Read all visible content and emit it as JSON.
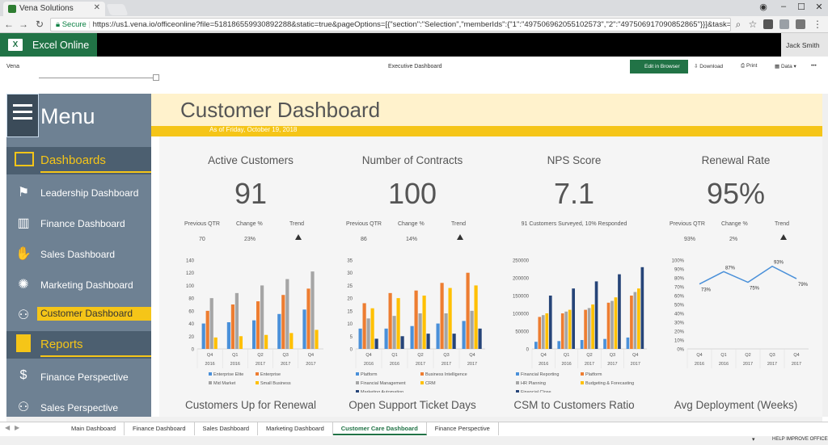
{
  "browser": {
    "tab_title": "Vena Solutions",
    "secure_label": "Secure",
    "url": "https://us1.vena.io/officeonline?file=518186559930892288&static=true&pageOptions=[{\"section\":\"Selection\",\"memberIds\":{\"1\":\"497506962055102573\",\"2\":\"497506917090852865\"}}]&task=51275349..."
  },
  "excel": {
    "brand": "Excel Online",
    "user": "Jack Smith",
    "vena_label": "Vena",
    "workbook_title": "Executive Dashboard",
    "edit_btn": "Edit in Browser",
    "download": "Download",
    "print": "Print",
    "data": "Data",
    "more": "•••"
  },
  "sidebar": {
    "menu": "Menu",
    "dashboards_head": "Dashboards",
    "items": [
      {
        "label": "Leadership Dashboard"
      },
      {
        "label": "Finance Dashboard"
      },
      {
        "label": "Sales Dashboard"
      },
      {
        "label": "Marketing Dashboard"
      },
      {
        "label": "Customer Dashboard"
      }
    ],
    "reports_head": "Reports",
    "reports": [
      {
        "label": "Finance Perspective"
      },
      {
        "label": "Sales Perspective"
      }
    ]
  },
  "dashboard": {
    "title": "Customer Dashboard",
    "as_of": "As of Friday, October 19, 2018",
    "kpis": [
      {
        "title": "Active Customers",
        "value": "91",
        "prev_lbl": "Previous QTR",
        "change_lbl": "Change %",
        "trend_lbl": "Trend",
        "prev": "70",
        "change": "23%"
      },
      {
        "title": "Number of Contracts",
        "value": "100",
        "prev_lbl": "Previous QTR",
        "change_lbl": "Change %",
        "trend_lbl": "Trend",
        "prev": "86",
        "change": "14%"
      },
      {
        "title": "NPS Score",
        "value": "7.1",
        "survey": "91 Customers Surveyed, 10% Responded"
      },
      {
        "title": "Renewal Rate",
        "value": "95%",
        "prev_lbl": "Previous QTR",
        "change_lbl": "Change %",
        "trend_lbl": "Trend",
        "prev": "93%",
        "change": "2%"
      }
    ],
    "bottom_titles": [
      "Customers Up for Renewal",
      "Open Support Ticket Days",
      "CSM to Customers Ratio",
      "Avg Deployment (Weeks)"
    ]
  },
  "chart_data": [
    {
      "type": "bar",
      "categories": [
        "Q4 2016",
        "Q1 2016",
        "Q2 2017",
        "Q3 2017",
        "Q4 2017"
      ],
      "quarter_labels": [
        "Q4",
        "Q1",
        "Q2",
        "Q3",
        "Q4"
      ],
      "year_labels": [
        "2016",
        "2016",
        "2017",
        "2017",
        "2017"
      ],
      "ylim": [
        0,
        140
      ],
      "yticks": [
        0,
        20,
        40,
        60,
        80,
        100,
        120,
        140
      ],
      "series": [
        {
          "name": "Enterprise Elite",
          "color": "#4a90d9",
          "values": [
            40,
            42,
            45,
            55,
            62
          ]
        },
        {
          "name": "Enterprise",
          "color": "#ed7d31",
          "values": [
            60,
            70,
            75,
            85,
            95
          ]
        },
        {
          "name": "Mid Market",
          "color": "#a5a5a5",
          "values": [
            80,
            88,
            100,
            110,
            122
          ]
        },
        {
          "name": "Small Business",
          "color": "#ffc000",
          "values": [
            18,
            20,
            22,
            25,
            30
          ]
        }
      ]
    },
    {
      "type": "bar",
      "categories": [
        "Q4 2016",
        "Q1 2016",
        "Q2 2017",
        "Q3 2017",
        "Q4 2017"
      ],
      "quarter_labels": [
        "Q4",
        "Q1",
        "Q2",
        "Q3",
        "Q4"
      ],
      "year_labels": [
        "2016",
        "2016",
        "2017",
        "2017",
        "2017"
      ],
      "ylim": [
        0,
        35
      ],
      "yticks": [
        0,
        5,
        10,
        15,
        20,
        25,
        30,
        35
      ],
      "series": [
        {
          "name": "Platform",
          "color": "#4a90d9",
          "values": [
            8,
            8,
            9,
            10,
            11
          ]
        },
        {
          "name": "Business Intelligence",
          "color": "#ed7d31",
          "values": [
            18,
            22,
            23,
            26,
            30
          ]
        },
        {
          "name": "Financial Management",
          "color": "#a5a5a5",
          "values": [
            12,
            13,
            14,
            14,
            15
          ]
        },
        {
          "name": "CRM",
          "color": "#ffc000",
          "values": [
            16,
            20,
            21,
            24,
            25
          ]
        },
        {
          "name": "Marketing Automation",
          "color": "#264478",
          "values": [
            4,
            5,
            6,
            6,
            8
          ]
        }
      ]
    },
    {
      "type": "bar",
      "categories": [
        "Q4 2016",
        "Q1 2016",
        "Q2 2017",
        "Q3 2017",
        "Q4 2017"
      ],
      "quarter_labels": [
        "Q4",
        "Q1",
        "Q2",
        "Q3",
        "Q4"
      ],
      "year_labels": [
        "2016",
        "2016",
        "2017",
        "2017",
        "2017"
      ],
      "ylim": [
        0,
        250000
      ],
      "yticks": [
        0,
        50000,
        100000,
        150000,
        200000,
        250000
      ],
      "series": [
        {
          "name": "Financial Reporting",
          "color": "#4a90d9",
          "values": [
            20000,
            22000,
            25000,
            28000,
            32000
          ]
        },
        {
          "name": "Platform",
          "color": "#ed7d31",
          "values": [
            90000,
            100000,
            110000,
            130000,
            150000
          ]
        },
        {
          "name": "HR Planning",
          "color": "#a5a5a5",
          "values": [
            95000,
            105000,
            115000,
            135000,
            160000
          ]
        },
        {
          "name": "Budgeting & Forecasting",
          "color": "#ffc000",
          "values": [
            100000,
            110000,
            125000,
            145000,
            170000
          ]
        },
        {
          "name": "Financial Close",
          "color": "#264478",
          "values": [
            150000,
            170000,
            190000,
            210000,
            230000
          ]
        }
      ]
    },
    {
      "type": "line",
      "categories": [
        "Q4 2016",
        "Q1 2016",
        "Q2 2017",
        "Q3 2017",
        "Q4 2017"
      ],
      "quarter_labels": [
        "Q4",
        "Q1",
        "Q2",
        "Q3",
        "Q4"
      ],
      "year_labels": [
        "2016",
        "2016",
        "2017",
        "2017",
        "2017"
      ],
      "ylim": [
        0,
        100
      ],
      "yticks": [
        0,
        10,
        20,
        30,
        40,
        50,
        60,
        70,
        80,
        90,
        100
      ],
      "series": [
        {
          "color": "#4a90d9",
          "values": [
            73,
            87,
            75,
            93,
            79
          ],
          "labels": [
            "73%",
            "87%",
            "75%",
            "93%",
            "79%"
          ]
        }
      ]
    }
  ],
  "sheet_tabs": [
    "Main Dashboard",
    "Finance Dashboard",
    "Sales Dashboard",
    "Marketing Dashboard",
    "Customer Care Dashboard",
    "Finance Perspective"
  ],
  "active_sheet": 4,
  "status": {
    "help": "HELP IMPROVE OFFICE"
  }
}
